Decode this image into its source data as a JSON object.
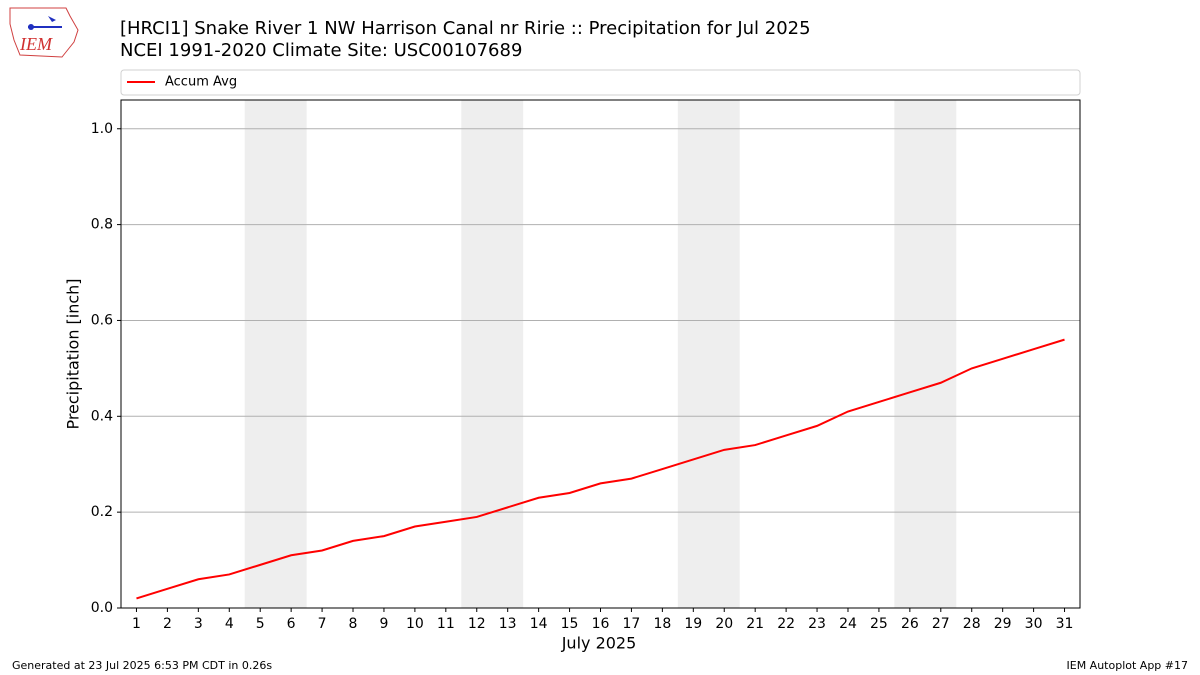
{
  "logo_text": "IEM",
  "footer_left": "Generated at 23 Jul 2025 6:53 PM CDT in 0.26s",
  "footer_right": "IEM Autoplot App #17",
  "chart_data": {
    "type": "line",
    "title": "[HRCI1] Snake River 1 NW Harrison Canal nr Ririe :: Precipitation for Jul 2025",
    "subtitle": "NCEI 1991-2020 Climate Site: USC00107689",
    "x_label": "July 2025",
    "y_label": "Precipitation [inch]",
    "x": [
      1,
      2,
      3,
      4,
      5,
      6,
      7,
      8,
      9,
      10,
      11,
      12,
      13,
      14,
      15,
      16,
      17,
      18,
      19,
      20,
      21,
      22,
      23,
      24,
      25,
      26,
      27,
      28,
      29,
      30,
      31
    ],
    "series": [
      {
        "name": "Accum Avg",
        "color": "#ff0000",
        "values": [
          0.02,
          0.04,
          0.06,
          0.07,
          0.09,
          0.11,
          0.12,
          0.14,
          0.15,
          0.17,
          0.18,
          0.19,
          0.21,
          0.23,
          0.24,
          0.26,
          0.27,
          0.29,
          0.31,
          0.33,
          0.34,
          0.36,
          0.38,
          0.41,
          0.43,
          0.45,
          0.47,
          0.5,
          0.52,
          0.54,
          0.56
        ]
      }
    ],
    "xlim": [
      0.5,
      31.5
    ],
    "xticks": [
      1,
      2,
      3,
      4,
      5,
      6,
      7,
      8,
      9,
      10,
      11,
      12,
      13,
      14,
      15,
      16,
      17,
      18,
      19,
      20,
      21,
      22,
      23,
      24,
      25,
      26,
      27,
      28,
      29,
      30,
      31
    ],
    "ylim": [
      0,
      1.06
    ],
    "yticks": [
      {
        "value": 0,
        "label": "0.0"
      },
      0.2,
      0.4,
      0.6,
      0.8,
      {
        "value": 1,
        "label": "1.0"
      }
    ],
    "grid": true,
    "legend_position": "top",
    "shaded_ranges": [
      [
        4.5,
        6.5
      ],
      [
        11.5,
        13.5
      ],
      [
        18.5,
        20.5
      ],
      [
        25.5,
        27.5
      ]
    ],
    "shade_color": "#eeeeee"
  }
}
